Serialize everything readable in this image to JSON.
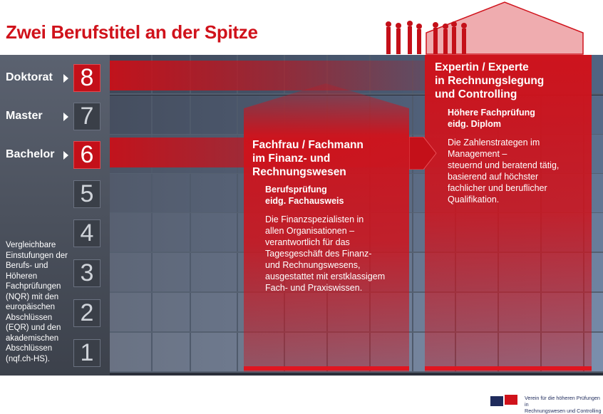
{
  "title": "Zwei Berufstitel an der Spitze",
  "sidebar": {
    "levels": [
      {
        "label": "Doktorat",
        "number": "8",
        "highlight": true
      },
      {
        "label": "Master",
        "number": "7",
        "highlight": false
      },
      {
        "label": "Bachelor",
        "number": "6",
        "highlight": true
      },
      {
        "label": "",
        "number": "5",
        "highlight": false
      },
      {
        "label": "",
        "number": "4",
        "highlight": false
      },
      {
        "label": "",
        "number": "3",
        "highlight": false
      },
      {
        "label": "",
        "number": "2",
        "highlight": false
      },
      {
        "label": "",
        "number": "1",
        "highlight": false
      }
    ],
    "description": "Vergleichbare Einstufungen der Berufs- und Höheren Fachprüfungen (NQR) mit den europäischen Abschlüssen (EQR) und den akademischen Abschlüssen (nqf.ch-HS)."
  },
  "columns": [
    {
      "heading": [
        "Fachfrau / Fachmann",
        "im Finanz- und",
        "Rechnungswesen"
      ],
      "subheading": [
        "Berufsprüfung",
        "eidg. Fachausweis"
      ],
      "description": [
        "Die Finanzspezialisten in",
        "allen Organisationen –",
        "verantwortlich für das",
        "Tagesgeschäft des Finanz-",
        "und Rechnungswesens,",
        "ausgestattet mit erstklassigem",
        "Fach- und Praxiswissen."
      ]
    },
    {
      "heading": [
        "Expertin / Experte",
        "in Rechnungslegung",
        "und Controlling"
      ],
      "subheading": [
        "Höhere Fachprüfung",
        "eidg. Diplom"
      ],
      "description": [
        "Die Zahlenstrategen im",
        "Management –",
        "steuernd und beratend tätig,",
        "basierend auf höchster",
        "fachlicher und beruflicher",
        "Qualifikation."
      ]
    }
  ],
  "footer": {
    "org": [
      "Verein für die höheren Prüfungen in",
      "Rechnungswesen und Controlling"
    ]
  },
  "colors": {
    "brand_red": "#d0121b",
    "navy": "#1f2b5c",
    "building": "#2b2f3a"
  }
}
